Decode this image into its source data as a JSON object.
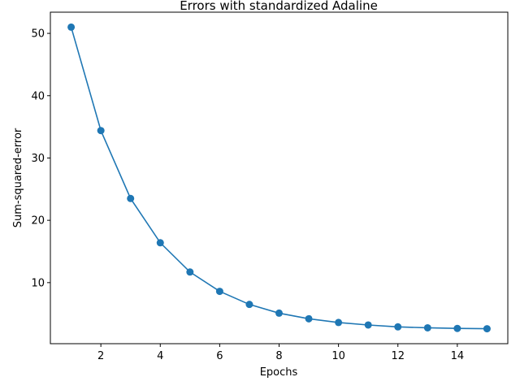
{
  "chart_data": {
    "type": "line",
    "title": "Errors with standardized Adaline",
    "xlabel": "Epochs",
    "ylabel": "Sum-squared-error",
    "x": [
      1,
      2,
      3,
      4,
      5,
      6,
      7,
      8,
      9,
      10,
      11,
      12,
      13,
      14,
      15
    ],
    "series": [
      {
        "values": [
          51.0,
          34.4,
          23.5,
          16.4,
          11.7,
          8.6,
          6.5,
          5.1,
          4.2,
          3.6,
          3.2,
          2.9,
          2.75,
          2.65,
          2.6
        ],
        "color": "#1f77b4",
        "marker": "circle"
      }
    ],
    "xlim": [
      0.3,
      15.7
    ],
    "ylim": [
      0.2,
      53.4
    ],
    "xticks": [
      2,
      4,
      6,
      8,
      10,
      12,
      14
    ],
    "yticks": [
      10,
      20,
      30,
      40,
      50
    ],
    "grid": false,
    "legend": "none"
  }
}
